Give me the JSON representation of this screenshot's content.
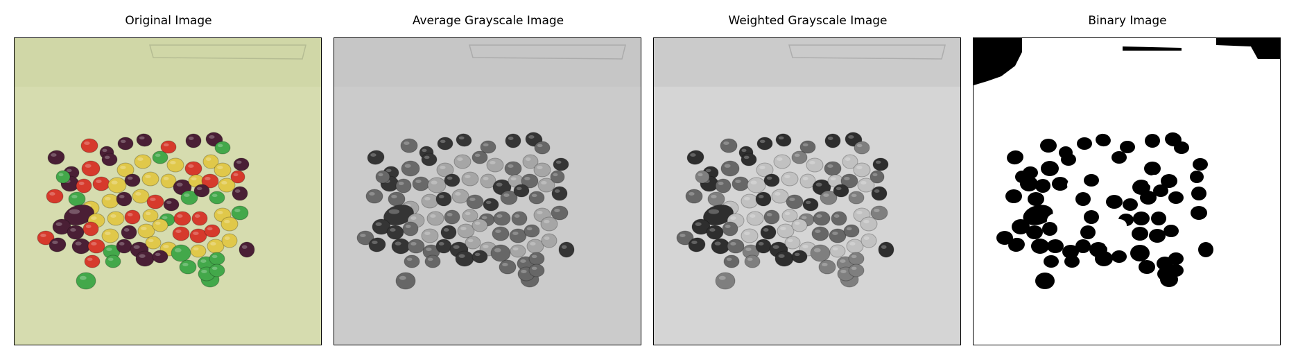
{
  "figure": {
    "panels": [
      {
        "title": "Original Image",
        "mode": "color"
      },
      {
        "title": "Average Grayscale Image",
        "mode": "gray-average"
      },
      {
        "title": "Weighted Grayscale Image",
        "mode": "gray-weighted"
      },
      {
        "title": "Binary Image",
        "mode": "binary"
      }
    ]
  },
  "palette": {
    "background_color": "#d6dcaf",
    "red": "#d63a2c",
    "yellow": "#e0c84a",
    "green": "#43a84a",
    "purple": "#4a1f35"
  }
}
